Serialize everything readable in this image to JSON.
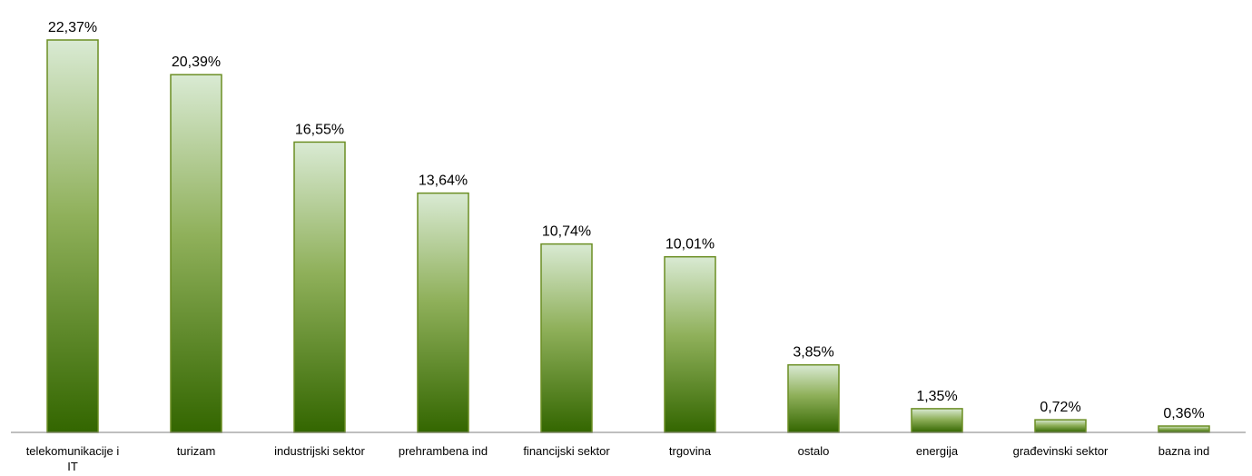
{
  "chart_data": {
    "type": "bar",
    "title": "",
    "xlabel": "",
    "ylabel": "",
    "ylim": [
      0,
      22.37
    ],
    "grid": false,
    "legend": "none",
    "categories": [
      "telekomunikacije i IT",
      "turizam",
      "industrijski sektor",
      "prehrambena ind",
      "financijski sektor",
      "trgovina",
      "ostalo",
      "energija",
      "građevinski sektor",
      "bazna ind"
    ],
    "category_lines": [
      [
        "telekomunikacije i",
        "IT"
      ],
      [
        "turizam"
      ],
      [
        "industrijski sektor"
      ],
      [
        "prehrambena ind"
      ],
      [
        "financijski sektor"
      ],
      [
        "trgovina"
      ],
      [
        "ostalo"
      ],
      [
        "energija"
      ],
      [
        "građevinski sektor"
      ],
      [
        "bazna ind"
      ]
    ],
    "values": [
      22.37,
      20.39,
      16.55,
      13.64,
      10.74,
      10.01,
      3.85,
      1.35,
      0.72,
      0.36
    ],
    "value_labels": [
      "22,37%",
      "20,39%",
      "16,55%",
      "13,64%",
      "10,74%",
      "10,01%",
      "3,85%",
      "1,35%",
      "0,72%",
      "0,36%"
    ],
    "colors": {
      "bar_top": "#d9ead3",
      "bar_mid": "#8fb05a",
      "bar_bottom": "#336600",
      "bar_stroke": "#6b8e23",
      "axis": "#7f7f7f"
    }
  }
}
